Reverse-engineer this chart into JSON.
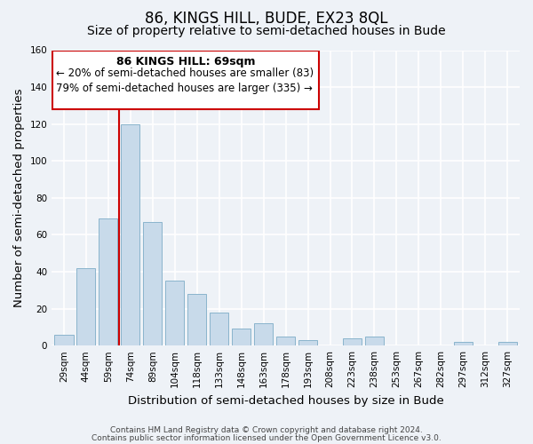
{
  "title": "86, KINGS HILL, BUDE, EX23 8QL",
  "subtitle": "Size of property relative to semi-detached houses in Bude",
  "xlabel": "Distribution of semi-detached houses by size in Bude",
  "ylabel": "Number of semi-detached properties",
  "categories": [
    "29sqm",
    "44sqm",
    "59sqm",
    "74sqm",
    "89sqm",
    "104sqm",
    "118sqm",
    "133sqm",
    "148sqm",
    "163sqm",
    "178sqm",
    "193sqm",
    "208sqm",
    "223sqm",
    "238sqm",
    "253sqm",
    "267sqm",
    "282sqm",
    "297sqm",
    "312sqm",
    "327sqm"
  ],
  "values": [
    6,
    42,
    69,
    120,
    67,
    35,
    28,
    18,
    9,
    12,
    5,
    3,
    0,
    4,
    5,
    0,
    0,
    0,
    2,
    0,
    2
  ],
  "bar_color": "#c8daea",
  "bar_edge_color": "#8ab4cc",
  "vline_color": "#cc0000",
  "vline_x_index": 3,
  "annotation_title": "86 KINGS HILL: 69sqm",
  "annotation_line1": "← 20% of semi-detached houses are smaller (83)",
  "annotation_line2": "79% of semi-detached houses are larger (335) →",
  "annotation_box_color": "#cc0000",
  "ylim": [
    0,
    160
  ],
  "yticks": [
    0,
    20,
    40,
    60,
    80,
    100,
    120,
    140,
    160
  ],
  "footer_line1": "Contains HM Land Registry data © Crown copyright and database right 2024.",
  "footer_line2": "Contains public sector information licensed under the Open Government Licence v3.0.",
  "background_color": "#eef2f7",
  "plot_background": "#eef2f7",
  "grid_color": "#ffffff",
  "title_fontsize": 12,
  "subtitle_fontsize": 10,
  "axis_label_fontsize": 9.5,
  "tick_fontsize": 7.5,
  "footer_fontsize": 6.5,
  "annotation_title_fontsize": 9,
  "annotation_text_fontsize": 8.5
}
